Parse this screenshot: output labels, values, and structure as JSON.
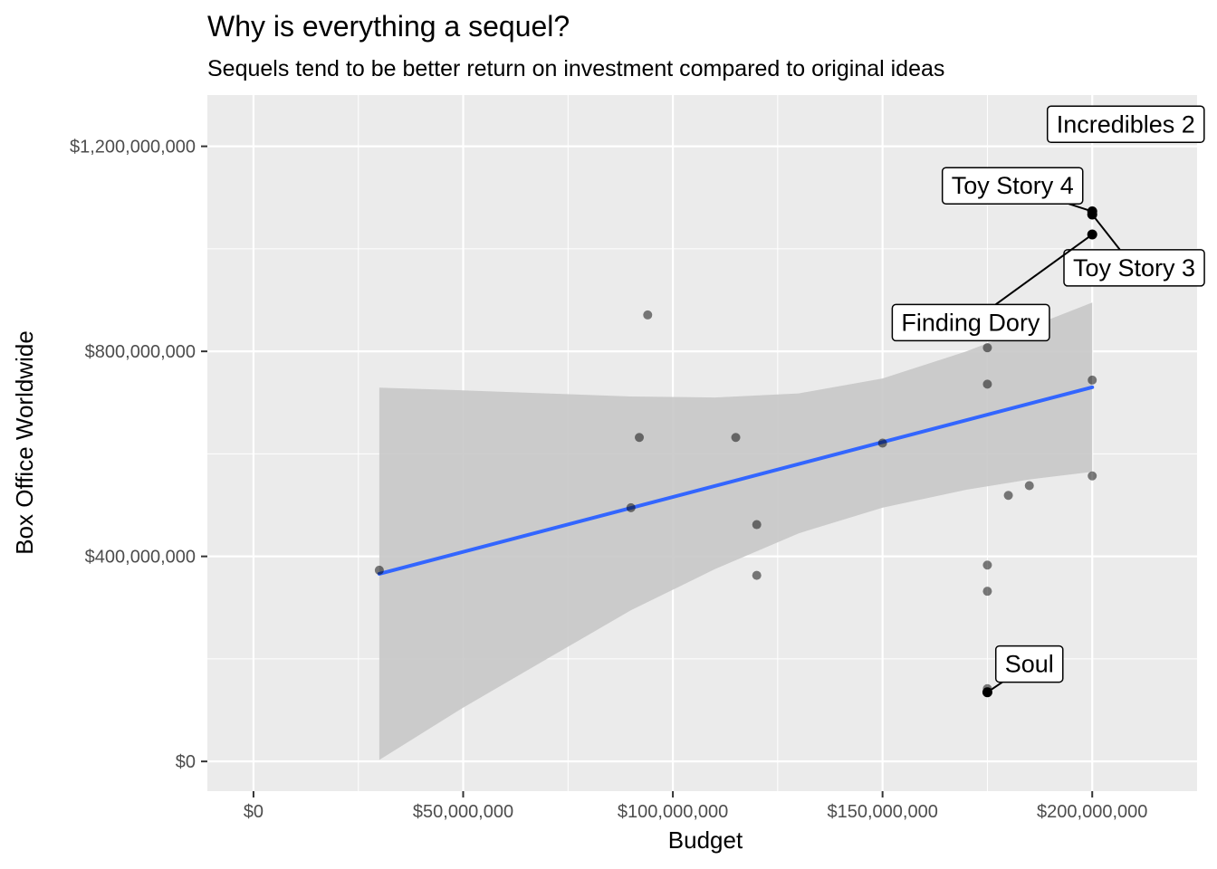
{
  "chart_data": {
    "type": "scatter",
    "title": "Why is everything a sequel?",
    "subtitle": "Sequels tend to be better return on investment compared to original ideas",
    "xlabel": "Budget",
    "ylabel": "Box Office Worldwide",
    "xlim": [
      -11000000,
      225000000
    ],
    "ylim": [
      -58000000,
      1300000000
    ],
    "x_ticks": [
      0,
      50000000,
      100000000,
      150000000,
      200000000
    ],
    "x_tick_labels": [
      "$0",
      "$50,000,000",
      "$100,000,000",
      "$150,000,000",
      "$200,000,000"
    ],
    "y_ticks": [
      0,
      400000000,
      800000000,
      1200000000
    ],
    "y_tick_labels": [
      "$0",
      "$400,000,000",
      "$800,000,000",
      "$1,200,000,000"
    ],
    "grid": true,
    "colors": {
      "panel_background": "#ebebeb",
      "grid": "#ffffff",
      "points": "#000000",
      "trend_line": "#3366ff",
      "confidence_band": "#c8c8c8"
    },
    "points": [
      {
        "x": 30000000,
        "y": 373000000
      },
      {
        "x": 90000000,
        "y": 495000000
      },
      {
        "x": 92000000,
        "y": 632000000
      },
      {
        "x": 94000000,
        "y": 871000000
      },
      {
        "x": 115000000,
        "y": 632000000
      },
      {
        "x": 120000000,
        "y": 462000000
      },
      {
        "x": 120000000,
        "y": 363000000
      },
      {
        "x": 150000000,
        "y": 621000000
      },
      {
        "x": 175000000,
        "y": 807000000
      },
      {
        "x": 175000000,
        "y": 736000000
      },
      {
        "x": 175000000,
        "y": 383000000
      },
      {
        "x": 175000000,
        "y": 332000000
      },
      {
        "x": 175000000,
        "y": 142000000
      },
      {
        "x": 180000000,
        "y": 519000000
      },
      {
        "x": 185000000,
        "y": 538000000
      },
      {
        "x": 200000000,
        "y": 744000000
      },
      {
        "x": 200000000,
        "y": 557000000
      }
    ],
    "highlighted": [
      {
        "label": "Incredibles 2",
        "x": 200000000,
        "y": 1243000000,
        "label_x": 208000000,
        "label_y": 1243000000
      },
      {
        "label": "Toy Story 4",
        "x": 200000000,
        "y": 1073000000,
        "label_x": 181000000,
        "label_y": 1123000000
      },
      {
        "label": "Toy Story 3",
        "x": 200000000,
        "y": 1067000000,
        "label_x": 210000000,
        "label_y": 963000000
      },
      {
        "label": "Finding Dory",
        "x": 200000000,
        "y": 1028000000,
        "label_x": 171000000,
        "label_y": 856000000
      },
      {
        "label": "Soul",
        "x": 175000000,
        "y": 135000000,
        "label_x": 185000000,
        "label_y": 190000000
      }
    ],
    "trend": {
      "x": [
        30000000,
        200000000
      ],
      "y": [
        366000000,
        730000000
      ]
    },
    "confidence_band": {
      "x": [
        30000000,
        50000000,
        70000000,
        90000000,
        110000000,
        130000000,
        150000000,
        170000000,
        185000000,
        200000000
      ],
      "lower": [
        3000000,
        105000000,
        200000000,
        295000000,
        375000000,
        445000000,
        495000000,
        530000000,
        550000000,
        565000000
      ],
      "upper": [
        729000000,
        724000000,
        718000000,
        712000000,
        710000000,
        718000000,
        747000000,
        800000000,
        847000000,
        895000000
      ]
    }
  }
}
